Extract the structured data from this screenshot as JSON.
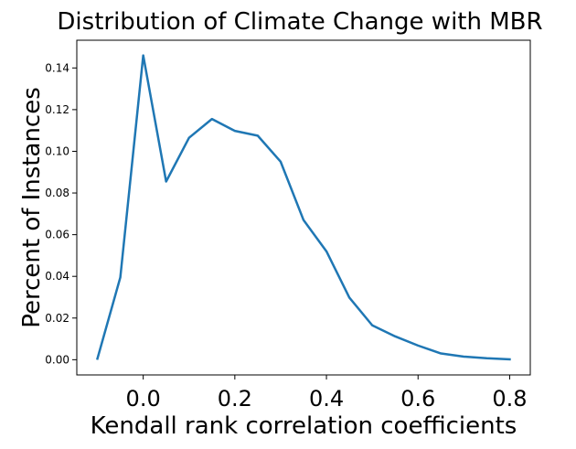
{
  "chart_data": {
    "type": "line",
    "title": "Distribution of Climate Change with MBR",
    "xlabel": "Kendall rank correlation coefficients",
    "ylabel": "Percent of Instances",
    "xlim": [
      -0.145,
      0.845
    ],
    "ylim": [
      -0.0073,
      0.1533
    ],
    "xticks": [
      0.0,
      0.2,
      0.4,
      0.6,
      0.8
    ],
    "xtick_labels": [
      "0.0",
      "0.2",
      "0.4",
      "0.6",
      "0.8"
    ],
    "yticks": [
      0.0,
      0.02,
      0.04,
      0.06,
      0.08,
      0.1,
      0.12,
      0.14
    ],
    "ytick_labels": [
      "0.00",
      "0.02",
      "0.04",
      "0.06",
      "0.08",
      "0.10",
      "0.12",
      "0.14"
    ],
    "grid": false,
    "line_color": "#1f77b4",
    "series": [
      {
        "x": [
          -0.1,
          -0.05,
          0.0,
          0.05,
          0.1,
          0.15,
          0.2,
          0.25,
          0.3,
          0.35,
          0.4,
          0.45,
          0.5,
          0.55,
          0.6,
          0.65,
          0.7,
          0.75,
          0.8
        ],
        "y": [
          0.0005,
          0.0395,
          0.146,
          0.0855,
          0.1065,
          0.1155,
          0.1098,
          0.1075,
          0.095,
          0.067,
          0.052,
          0.0298,
          0.0165,
          0.0112,
          0.0068,
          0.003,
          0.0015,
          0.0007,
          0.0002
        ]
      }
    ]
  }
}
